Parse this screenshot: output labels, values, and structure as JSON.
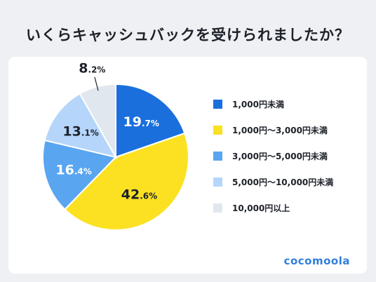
{
  "title": "いくらキャッシュバックを受けられましたか？",
  "brand": "cocomoola",
  "chart_data": {
    "type": "pie",
    "title": "いくらキャッシュバックを受けられましたか？",
    "start": "12 o'clock, clockwise",
    "slices": [
      {
        "label": "1,000円未満",
        "value": 19.7,
        "display_int": "19",
        "display_dec": ".7%",
        "color": "#1a6fdc",
        "text_color": "#ffffff"
      },
      {
        "label": "1,000円〜3,000円未満",
        "value": 42.6,
        "display_int": "42",
        "display_dec": ".6%",
        "color": "#fbe122",
        "text_color": "#1d2129"
      },
      {
        "label": "3,000円〜5,000円未満",
        "value": 16.4,
        "display_int": "16",
        "display_dec": ".4%",
        "color": "#5aa5f0",
        "text_color": "#ffffff"
      },
      {
        "label": "5,000円〜10,000円未満",
        "value": 13.1,
        "display_int": "13",
        "display_dec": ".1%",
        "color": "#b5d6fa",
        "text_color": "#1d2129"
      },
      {
        "label": "10,000円以上",
        "value": 8.2,
        "display_int": "8",
        "display_dec": ".2%",
        "color": "#e1e7ef",
        "text_color": "#1d2129"
      }
    ],
    "legend": "right"
  }
}
